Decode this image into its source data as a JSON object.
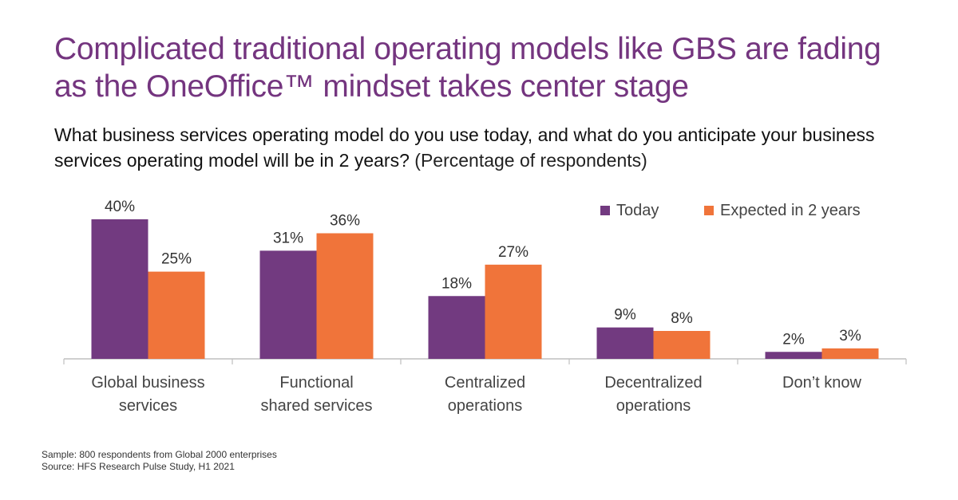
{
  "title_lines": [
    "Complicated traditional operating models like GBS are fading",
    "as the OneOffice™ mindset takes center stage"
  ],
  "question": {
    "main": "What business services operating model do you use today, and what do you anticipate your business services operating model will be in 2 years?",
    "note": "(Percentage of respondents)"
  },
  "colors": {
    "title": "#74357f",
    "today": "#723a80",
    "expected": "#f0743a"
  },
  "chart_data": {
    "type": "bar",
    "categories": [
      [
        "Global business",
        "services"
      ],
      [
        "Functional",
        "shared services"
      ],
      [
        "Centralized",
        "operations"
      ],
      [
        "Decentralized",
        "operations"
      ],
      [
        "Don’t know"
      ]
    ],
    "series": [
      {
        "name": "Today",
        "color": "#723a80",
        "values": [
          40,
          31,
          18,
          9,
          2
        ],
        "labels": [
          "40%",
          "31%",
          "18%",
          "9%",
          "2%"
        ]
      },
      {
        "name": "Expected in 2 years",
        "color": "#f0743a",
        "values": [
          25,
          36,
          27,
          8,
          3
        ],
        "labels": [
          "25%",
          "36%",
          "27%",
          "8%",
          "3%"
        ]
      }
    ],
    "unit": "%",
    "ylim": [
      0,
      40
    ],
    "grid": false,
    "legend": "top-right"
  },
  "footnotes": {
    "sample": "Sample: 800 respondents from Global 2000 enterprises",
    "source": "Source: HFS Research Pulse Study, H1 2021"
  }
}
